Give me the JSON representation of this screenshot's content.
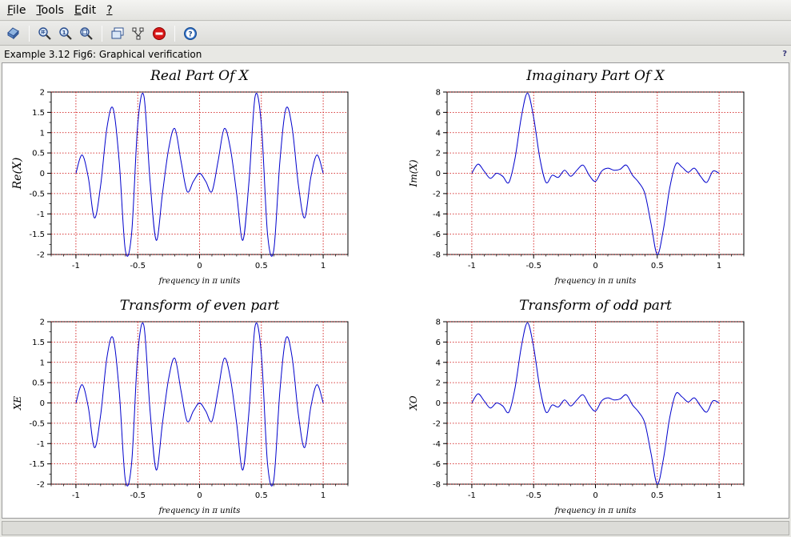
{
  "menu": [
    {
      "key": "F",
      "rest": "ile"
    },
    {
      "key": "T",
      "rest": "ools"
    },
    {
      "key": "E",
      "rest": "dit"
    },
    {
      "key": "?",
      "rest": ""
    }
  ],
  "toolbar": {
    "icons": [
      "rotate-icon",
      "zoom-in-icon",
      "zoom-original-icon",
      "zoom-area-icon",
      "datatip-icon",
      "figure-tree-icon",
      "stop-icon",
      "help-icon"
    ]
  },
  "window_title": "Example 3.12 Fig6: Graphical verification",
  "help_glyph": "?",
  "colors": {
    "curve": "#0000cc",
    "grid": "#cc0000",
    "axis": "#000000"
  },
  "chart_data": [
    {
      "type": "line",
      "title": "Real Part Of X",
      "xlabel": "frequency in π units",
      "ylabel": "Re(X)",
      "xlim": [
        -1.2,
        1.2
      ],
      "ylim": [
        -2,
        2
      ],
      "xticks": [
        -1,
        -0.5,
        0,
        0.5,
        1
      ],
      "yticks": [
        2,
        1.5,
        1,
        0.5,
        0,
        -0.5,
        -1,
        -1.5,
        -2
      ],
      "grid": true,
      "series": [
        {
          "x": [
            -1,
            -0.95,
            -0.9,
            -0.85,
            -0.8,
            -0.75,
            -0.7,
            -0.65,
            -0.6,
            -0.55,
            -0.5,
            -0.45,
            -0.4,
            -0.35,
            -0.3,
            -0.25,
            -0.2,
            -0.15,
            -0.1,
            -0.05,
            0,
            0.05,
            0.1,
            0.15,
            0.2,
            0.25,
            0.3,
            0.35,
            0.4,
            0.45,
            0.5,
            0.55,
            0.6,
            0.65,
            0.7,
            0.75,
            0.8,
            0.85,
            0.9,
            0.95,
            1
          ],
          "values": [
            0,
            0.45,
            -0.1,
            -1.1,
            -0.3,
            1.1,
            1.6,
            0.3,
            -1.9,
            -1.5,
            1.2,
            1.9,
            -0.2,
            -1.65,
            -0.5,
            0.6,
            1.1,
            0.3,
            -0.45,
            -0.2,
            0,
            -0.2,
            -0.45,
            0.3,
            1.1,
            0.6,
            -0.5,
            -1.65,
            -0.2,
            1.9,
            1.2,
            -1.5,
            -1.9,
            0.3,
            1.6,
            1.1,
            -0.3,
            -1.1,
            -0.1,
            0.45,
            0
          ]
        }
      ]
    },
    {
      "type": "line",
      "title": "Imaginary Part Of X",
      "xlabel": "frequency in π units",
      "ylabel": "Im(X)",
      "xlim": [
        -1.2,
        1.2
      ],
      "ylim": [
        -8,
        8
      ],
      "xticks": [
        -1,
        -0.5,
        0,
        0.5,
        1
      ],
      "yticks": [
        8,
        6,
        4,
        2,
        0,
        -2,
        -4,
        -6,
        -8
      ],
      "grid": true,
      "series": [
        {
          "x": [
            -1,
            -0.95,
            -0.9,
            -0.85,
            -0.8,
            -0.75,
            -0.7,
            -0.65,
            -0.6,
            -0.55,
            -0.5,
            -0.45,
            -0.4,
            -0.35,
            -0.3,
            -0.25,
            -0.2,
            -0.15,
            -0.1,
            -0.05,
            0,
            0.05,
            0.1,
            0.15,
            0.2,
            0.25,
            0.3,
            0.35,
            0.4,
            0.45,
            0.5,
            0.55,
            0.6,
            0.65,
            0.7,
            0.75,
            0.8,
            0.85,
            0.9,
            0.95,
            1
          ],
          "values": [
            0,
            0.9,
            0.2,
            -0.5,
            0,
            -0.3,
            -0.9,
            1.5,
            5.5,
            7.9,
            5.5,
            1.5,
            -0.9,
            -0.2,
            -0.4,
            0.3,
            -0.3,
            0.3,
            0.8,
            -0.2,
            -0.8,
            0.2,
            0.5,
            0.3,
            0.4,
            0.8,
            -0.2,
            -0.9,
            -2.0,
            -5.0,
            -8.0,
            -5.5,
            -1.5,
            0.9,
            0.6,
            0.1,
            0.5,
            -0.3,
            -0.9,
            0.2,
            0
          ]
        }
      ]
    },
    {
      "type": "line",
      "title": "Transform of even part",
      "xlabel": "frequency in π units",
      "ylabel": "XE",
      "xlim": [
        -1.2,
        1.2
      ],
      "ylim": [
        -2,
        2
      ],
      "xticks": [
        -1,
        -0.5,
        0,
        0.5,
        1
      ],
      "yticks": [
        2,
        1.5,
        1,
        0.5,
        0,
        -0.5,
        -1,
        -1.5,
        -2
      ],
      "grid": true,
      "series": [
        {
          "x": [
            -1,
            -0.95,
            -0.9,
            -0.85,
            -0.8,
            -0.75,
            -0.7,
            -0.65,
            -0.6,
            -0.55,
            -0.5,
            -0.45,
            -0.4,
            -0.35,
            -0.3,
            -0.25,
            -0.2,
            -0.15,
            -0.1,
            -0.05,
            0,
            0.05,
            0.1,
            0.15,
            0.2,
            0.25,
            0.3,
            0.35,
            0.4,
            0.45,
            0.5,
            0.55,
            0.6,
            0.65,
            0.7,
            0.75,
            0.8,
            0.85,
            0.9,
            0.95,
            1
          ],
          "values": [
            0,
            0.45,
            -0.1,
            -1.1,
            -0.3,
            1.1,
            1.6,
            0.3,
            -1.9,
            -1.5,
            1.2,
            1.9,
            -0.2,
            -1.65,
            -0.5,
            0.6,
            1.1,
            0.3,
            -0.45,
            -0.2,
            0,
            -0.2,
            -0.45,
            0.3,
            1.1,
            0.6,
            -0.5,
            -1.65,
            -0.2,
            1.9,
            1.2,
            -1.5,
            -1.9,
            0.3,
            1.6,
            1.1,
            -0.3,
            -1.1,
            -0.1,
            0.45,
            0
          ]
        }
      ]
    },
    {
      "type": "line",
      "title": "Transform of odd part",
      "xlabel": "frequency in π units",
      "ylabel": "XO",
      "xlim": [
        -1.2,
        1.2
      ],
      "ylim": [
        -8,
        8
      ],
      "xticks": [
        -1,
        -0.5,
        0,
        0.5,
        1
      ],
      "yticks": [
        8,
        6,
        4,
        2,
        0,
        -2,
        -4,
        -6,
        -8
      ],
      "grid": true,
      "series": [
        {
          "x": [
            -1,
            -0.95,
            -0.9,
            -0.85,
            -0.8,
            -0.75,
            -0.7,
            -0.65,
            -0.6,
            -0.55,
            -0.5,
            -0.45,
            -0.4,
            -0.35,
            -0.3,
            -0.25,
            -0.2,
            -0.15,
            -0.1,
            -0.05,
            0,
            0.05,
            0.1,
            0.15,
            0.2,
            0.25,
            0.3,
            0.35,
            0.4,
            0.45,
            0.5,
            0.55,
            0.6,
            0.65,
            0.7,
            0.75,
            0.8,
            0.85,
            0.9,
            0.95,
            1
          ],
          "values": [
            0,
            0.9,
            0.2,
            -0.5,
            0,
            -0.3,
            -0.9,
            1.5,
            5.5,
            7.9,
            5.5,
            1.5,
            -0.9,
            -0.2,
            -0.4,
            0.3,
            -0.3,
            0.3,
            0.8,
            -0.2,
            -0.8,
            0.2,
            0.5,
            0.3,
            0.4,
            0.8,
            -0.2,
            -0.9,
            -2.0,
            -5.0,
            -8.0,
            -5.5,
            -1.5,
            0.9,
            0.6,
            0.1,
            0.5,
            -0.3,
            -0.9,
            0.2,
            0
          ]
        }
      ]
    }
  ]
}
